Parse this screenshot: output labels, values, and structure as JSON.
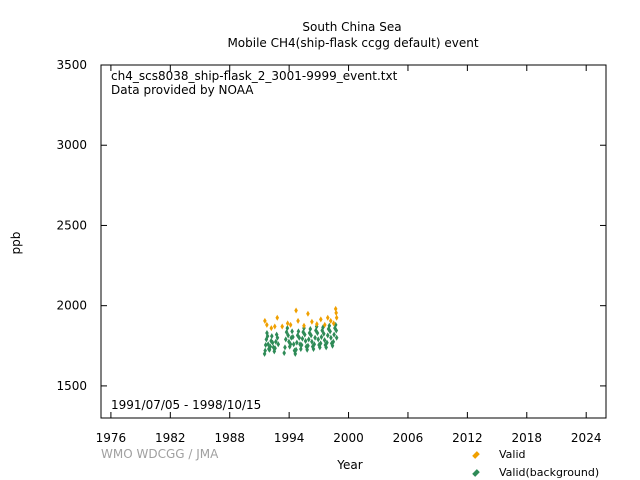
{
  "chart_data": {
    "type": "scatter",
    "title_line1": "South China Sea",
    "title_line2": "Mobile    CH4(ship-flask ccgg default) event",
    "xlabel": "Year",
    "ylabel": "ppb",
    "xlim": [
      1975,
      2026
    ],
    "ylim": [
      1300,
      3500
    ],
    "x_ticks": [
      1976,
      1982,
      1988,
      1994,
      2000,
      2006,
      2012,
      2018,
      2024
    ],
    "y_ticks": [
      1500,
      2000,
      2500,
      3000,
      3500
    ],
    "file_info": "ch4_scs8038_ship-flask_2_3001-9999_event.txt",
    "provider": "Data provided by NOAA",
    "date_range": "1991/07/05 - 1998/10/15",
    "credit": "WMO WDCGG / JMA",
    "legend_position": "bottom-right",
    "series": [
      {
        "name": "Valid",
        "color": "#f0a000",
        "points": [
          [
            1991.55,
            1905
          ],
          [
            1991.75,
            1880
          ],
          [
            1992.2,
            1860
          ],
          [
            1992.55,
            1870
          ],
          [
            1992.8,
            1925
          ],
          [
            1993.3,
            1870
          ],
          [
            1993.85,
            1890
          ],
          [
            1994.15,
            1880
          ],
          [
            1994.7,
            1970
          ],
          [
            1994.9,
            1905
          ],
          [
            1995.5,
            1875
          ],
          [
            1995.9,
            1950
          ],
          [
            1996.3,
            1900
          ],
          [
            1996.8,
            1885
          ],
          [
            1997.2,
            1915
          ],
          [
            1997.6,
            1880
          ],
          [
            1997.9,
            1925
          ],
          [
            1998.2,
            1905
          ],
          [
            1998.5,
            1890
          ],
          [
            1998.7,
            1980
          ],
          [
            1998.75,
            1955
          ],
          [
            1998.8,
            1925
          ]
        ]
      },
      {
        "name": "Valid(background)",
        "color": "#2e8b57",
        "points": [
          [
            1991.52,
            1700
          ],
          [
            1991.58,
            1720
          ],
          [
            1991.63,
            1755
          ],
          [
            1991.7,
            1790
          ],
          [
            1991.76,
            1830
          ],
          [
            1991.82,
            1810
          ],
          [
            1991.88,
            1760
          ],
          [
            1991.95,
            1730
          ],
          [
            1992.02,
            1725
          ],
          [
            1992.1,
            1745
          ],
          [
            1992.18,
            1780
          ],
          [
            1992.25,
            1810
          ],
          [
            1992.33,
            1770
          ],
          [
            1992.42,
            1740
          ],
          [
            1992.5,
            1715
          ],
          [
            1992.58,
            1735
          ],
          [
            1992.66,
            1775
          ],
          [
            1992.74,
            1820
          ],
          [
            1992.82,
            1800
          ],
          [
            1992.9,
            1760
          ],
          [
            1993.5,
            1705
          ],
          [
            1993.58,
            1740
          ],
          [
            1993.66,
            1790
          ],
          [
            1993.74,
            1835
          ],
          [
            1993.82,
            1860
          ],
          [
            1993.9,
            1815
          ],
          [
            1993.98,
            1775
          ],
          [
            1994.06,
            1745
          ],
          [
            1994.14,
            1760
          ],
          [
            1994.22,
            1800
          ],
          [
            1994.3,
            1840
          ],
          [
            1994.38,
            1805
          ],
          [
            1994.46,
            1760
          ],
          [
            1994.54,
            1720
          ],
          [
            1994.62,
            1700
          ],
          [
            1994.7,
            1725
          ],
          [
            1994.78,
            1770
          ],
          [
            1994.86,
            1815
          ],
          [
            1994.94,
            1840
          ],
          [
            1995.02,
            1800
          ],
          [
            1995.1,
            1760
          ],
          [
            1995.18,
            1730
          ],
          [
            1995.26,
            1755
          ],
          [
            1995.34,
            1795
          ],
          [
            1995.42,
            1835
          ],
          [
            1995.5,
            1860
          ],
          [
            1995.58,
            1820
          ],
          [
            1995.66,
            1780
          ],
          [
            1995.74,
            1745
          ],
          [
            1995.82,
            1725
          ],
          [
            1995.9,
            1750
          ],
          [
            1995.98,
            1790
          ],
          [
            1996.06,
            1830
          ],
          [
            1996.14,
            1855
          ],
          [
            1996.22,
            1815
          ],
          [
            1996.3,
            1775
          ],
          [
            1996.38,
            1745
          ],
          [
            1996.46,
            1730
          ],
          [
            1996.54,
            1760
          ],
          [
            1996.62,
            1800
          ],
          [
            1996.7,
            1845
          ],
          [
            1996.78,
            1870
          ],
          [
            1996.86,
            1830
          ],
          [
            1996.94,
            1790
          ],
          [
            1997.02,
            1755
          ],
          [
            1997.1,
            1740
          ],
          [
            1997.18,
            1765
          ],
          [
            1997.26,
            1805
          ],
          [
            1997.34,
            1845
          ],
          [
            1997.42,
            1865
          ],
          [
            1997.5,
            1825
          ],
          [
            1997.58,
            1785
          ],
          [
            1997.66,
            1755
          ],
          [
            1997.74,
            1740
          ],
          [
            1997.82,
            1770
          ],
          [
            1997.9,
            1815
          ],
          [
            1997.98,
            1855
          ],
          [
            1998.06,
            1875
          ],
          [
            1998.14,
            1840
          ],
          [
            1998.22,
            1800
          ],
          [
            1998.3,
            1765
          ],
          [
            1998.38,
            1750
          ],
          [
            1998.46,
            1775
          ],
          [
            1998.54,
            1820
          ],
          [
            1998.62,
            1860
          ],
          [
            1998.7,
            1880
          ],
          [
            1998.76,
            1845
          ],
          [
            1998.8,
            1800
          ]
        ]
      }
    ]
  }
}
